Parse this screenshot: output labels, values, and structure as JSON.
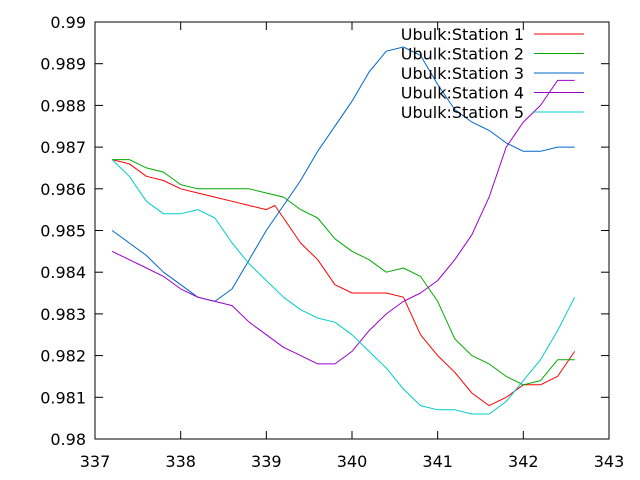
{
  "chart_data": {
    "type": "line",
    "title": "",
    "xlabel": "",
    "ylabel": "",
    "xlim": [
      337,
      343
    ],
    "ylim": [
      0.98,
      0.99
    ],
    "xticks": [
      "337",
      "338",
      "339",
      "340",
      "341",
      "342",
      "343"
    ],
    "yticks": [
      "0.98",
      "0.981",
      "0.982",
      "0.983",
      "0.984",
      "0.985",
      "0.986",
      "0.987",
      "0.988",
      "0.989",
      "0.99"
    ],
    "grid": false,
    "legend_position": "top-right",
    "series": [
      {
        "name": "Ubulk:Station 1",
        "color": "#ff0000",
        "points": [
          [
            337.2,
            0.9867
          ],
          [
            337.4,
            0.9866
          ],
          [
            337.6,
            0.9863
          ],
          [
            337.8,
            0.9862
          ],
          [
            338.0,
            0.986
          ],
          [
            338.2,
            0.9859
          ],
          [
            338.4,
            0.9858
          ],
          [
            338.6,
            0.9857
          ],
          [
            338.8,
            0.9856
          ],
          [
            339.0,
            0.9855
          ],
          [
            339.1,
            0.9856
          ],
          [
            339.2,
            0.9853
          ],
          [
            339.4,
            0.9847
          ],
          [
            339.6,
            0.9843
          ],
          [
            339.8,
            0.9837
          ],
          [
            340.0,
            0.9835
          ],
          [
            340.2,
            0.9835
          ],
          [
            340.4,
            0.9835
          ],
          [
            340.6,
            0.9834
          ],
          [
            340.8,
            0.9825
          ],
          [
            341.0,
            0.982
          ],
          [
            341.2,
            0.9816
          ],
          [
            341.4,
            0.9811
          ],
          [
            341.6,
            0.9808
          ],
          [
            341.8,
            0.981
          ],
          [
            342.0,
            0.9813
          ],
          [
            342.2,
            0.9813
          ],
          [
            342.4,
            0.9815
          ],
          [
            342.6,
            0.9821
          ]
        ]
      },
      {
        "name": "Ubulk:Station 2",
        "color": "#00aa00",
        "points": [
          [
            337.2,
            0.9867
          ],
          [
            337.4,
            0.9867
          ],
          [
            337.6,
            0.9865
          ],
          [
            337.8,
            0.9864
          ],
          [
            338.0,
            0.9861
          ],
          [
            338.2,
            0.986
          ],
          [
            338.4,
            0.986
          ],
          [
            338.6,
            0.986
          ],
          [
            338.8,
            0.986
          ],
          [
            339.0,
            0.9859
          ],
          [
            339.2,
            0.9858
          ],
          [
            339.4,
            0.9855
          ],
          [
            339.6,
            0.9853
          ],
          [
            339.8,
            0.9848
          ],
          [
            340.0,
            0.9845
          ],
          [
            340.2,
            0.9843
          ],
          [
            340.4,
            0.984
          ],
          [
            340.6,
            0.9841
          ],
          [
            340.8,
            0.9839
          ],
          [
            341.0,
            0.9833
          ],
          [
            341.2,
            0.9824
          ],
          [
            341.4,
            0.982
          ],
          [
            341.6,
            0.9818
          ],
          [
            341.8,
            0.9815
          ],
          [
            342.0,
            0.9813
          ],
          [
            342.2,
            0.9814
          ],
          [
            342.4,
            0.9819
          ],
          [
            342.6,
            0.9819
          ]
        ]
      },
      {
        "name": "Ubulk:Station 3",
        "color": "#0066cc",
        "points": [
          [
            337.2,
            0.985
          ],
          [
            337.4,
            0.9847
          ],
          [
            337.6,
            0.9844
          ],
          [
            337.8,
            0.984
          ],
          [
            338.0,
            0.9837
          ],
          [
            338.2,
            0.9834
          ],
          [
            338.4,
            0.9833
          ],
          [
            338.6,
            0.9836
          ],
          [
            338.8,
            0.9843
          ],
          [
            339.0,
            0.985
          ],
          [
            339.2,
            0.9856
          ],
          [
            339.4,
            0.9862
          ],
          [
            339.6,
            0.9869
          ],
          [
            339.8,
            0.9875
          ],
          [
            340.0,
            0.9881
          ],
          [
            340.2,
            0.9888
          ],
          [
            340.4,
            0.9893
          ],
          [
            340.6,
            0.9894
          ],
          [
            340.8,
            0.9892
          ],
          [
            341.0,
            0.9885
          ],
          [
            341.2,
            0.9879
          ],
          [
            341.4,
            0.9876
          ],
          [
            341.6,
            0.9874
          ],
          [
            341.8,
            0.9871
          ],
          [
            342.0,
            0.9869
          ],
          [
            342.2,
            0.9869
          ],
          [
            342.4,
            0.987
          ],
          [
            342.6,
            0.987
          ]
        ]
      },
      {
        "name": "Ubulk:Station 4",
        "color": "#9900cc",
        "points": [
          [
            337.2,
            0.9845
          ],
          [
            337.4,
            0.9843
          ],
          [
            337.6,
            0.9841
          ],
          [
            337.8,
            0.9839
          ],
          [
            338.0,
            0.9836
          ],
          [
            338.2,
            0.9834
          ],
          [
            338.4,
            0.9833
          ],
          [
            338.6,
            0.9832
          ],
          [
            338.8,
            0.9828
          ],
          [
            339.0,
            0.9825
          ],
          [
            339.2,
            0.9822
          ],
          [
            339.4,
            0.982
          ],
          [
            339.6,
            0.9818
          ],
          [
            339.8,
            0.9818
          ],
          [
            340.0,
            0.9821
          ],
          [
            340.2,
            0.9826
          ],
          [
            340.4,
            0.983
          ],
          [
            340.6,
            0.9833
          ],
          [
            340.8,
            0.9835
          ],
          [
            341.0,
            0.9838
          ],
          [
            341.2,
            0.9843
          ],
          [
            341.4,
            0.9849
          ],
          [
            341.6,
            0.9858
          ],
          [
            341.8,
            0.987
          ],
          [
            342.0,
            0.9876
          ],
          [
            342.2,
            0.988
          ],
          [
            342.4,
            0.9886
          ],
          [
            342.6,
            0.9886
          ]
        ]
      },
      {
        "name": "Ubulk:Station 5",
        "color": "#00cccc",
        "points": [
          [
            337.2,
            0.9867
          ],
          [
            337.4,
            0.9863
          ],
          [
            337.6,
            0.9857
          ],
          [
            337.8,
            0.9854
          ],
          [
            338.0,
            0.9854
          ],
          [
            338.2,
            0.9855
          ],
          [
            338.4,
            0.9853
          ],
          [
            338.6,
            0.9847
          ],
          [
            338.8,
            0.9842
          ],
          [
            339.0,
            0.9838
          ],
          [
            339.2,
            0.9834
          ],
          [
            339.4,
            0.9831
          ],
          [
            339.6,
            0.9829
          ],
          [
            339.8,
            0.9828
          ],
          [
            340.0,
            0.9825
          ],
          [
            340.2,
            0.9821
          ],
          [
            340.4,
            0.9817
          ],
          [
            340.6,
            0.9812
          ],
          [
            340.8,
            0.9808
          ],
          [
            341.0,
            0.9807
          ],
          [
            341.2,
            0.9807
          ],
          [
            341.4,
            0.9806
          ],
          [
            341.6,
            0.9806
          ],
          [
            341.8,
            0.9809
          ],
          [
            342.0,
            0.9814
          ],
          [
            342.2,
            0.9819
          ],
          [
            342.4,
            0.9826
          ],
          [
            342.6,
            0.9834
          ]
        ]
      }
    ]
  }
}
